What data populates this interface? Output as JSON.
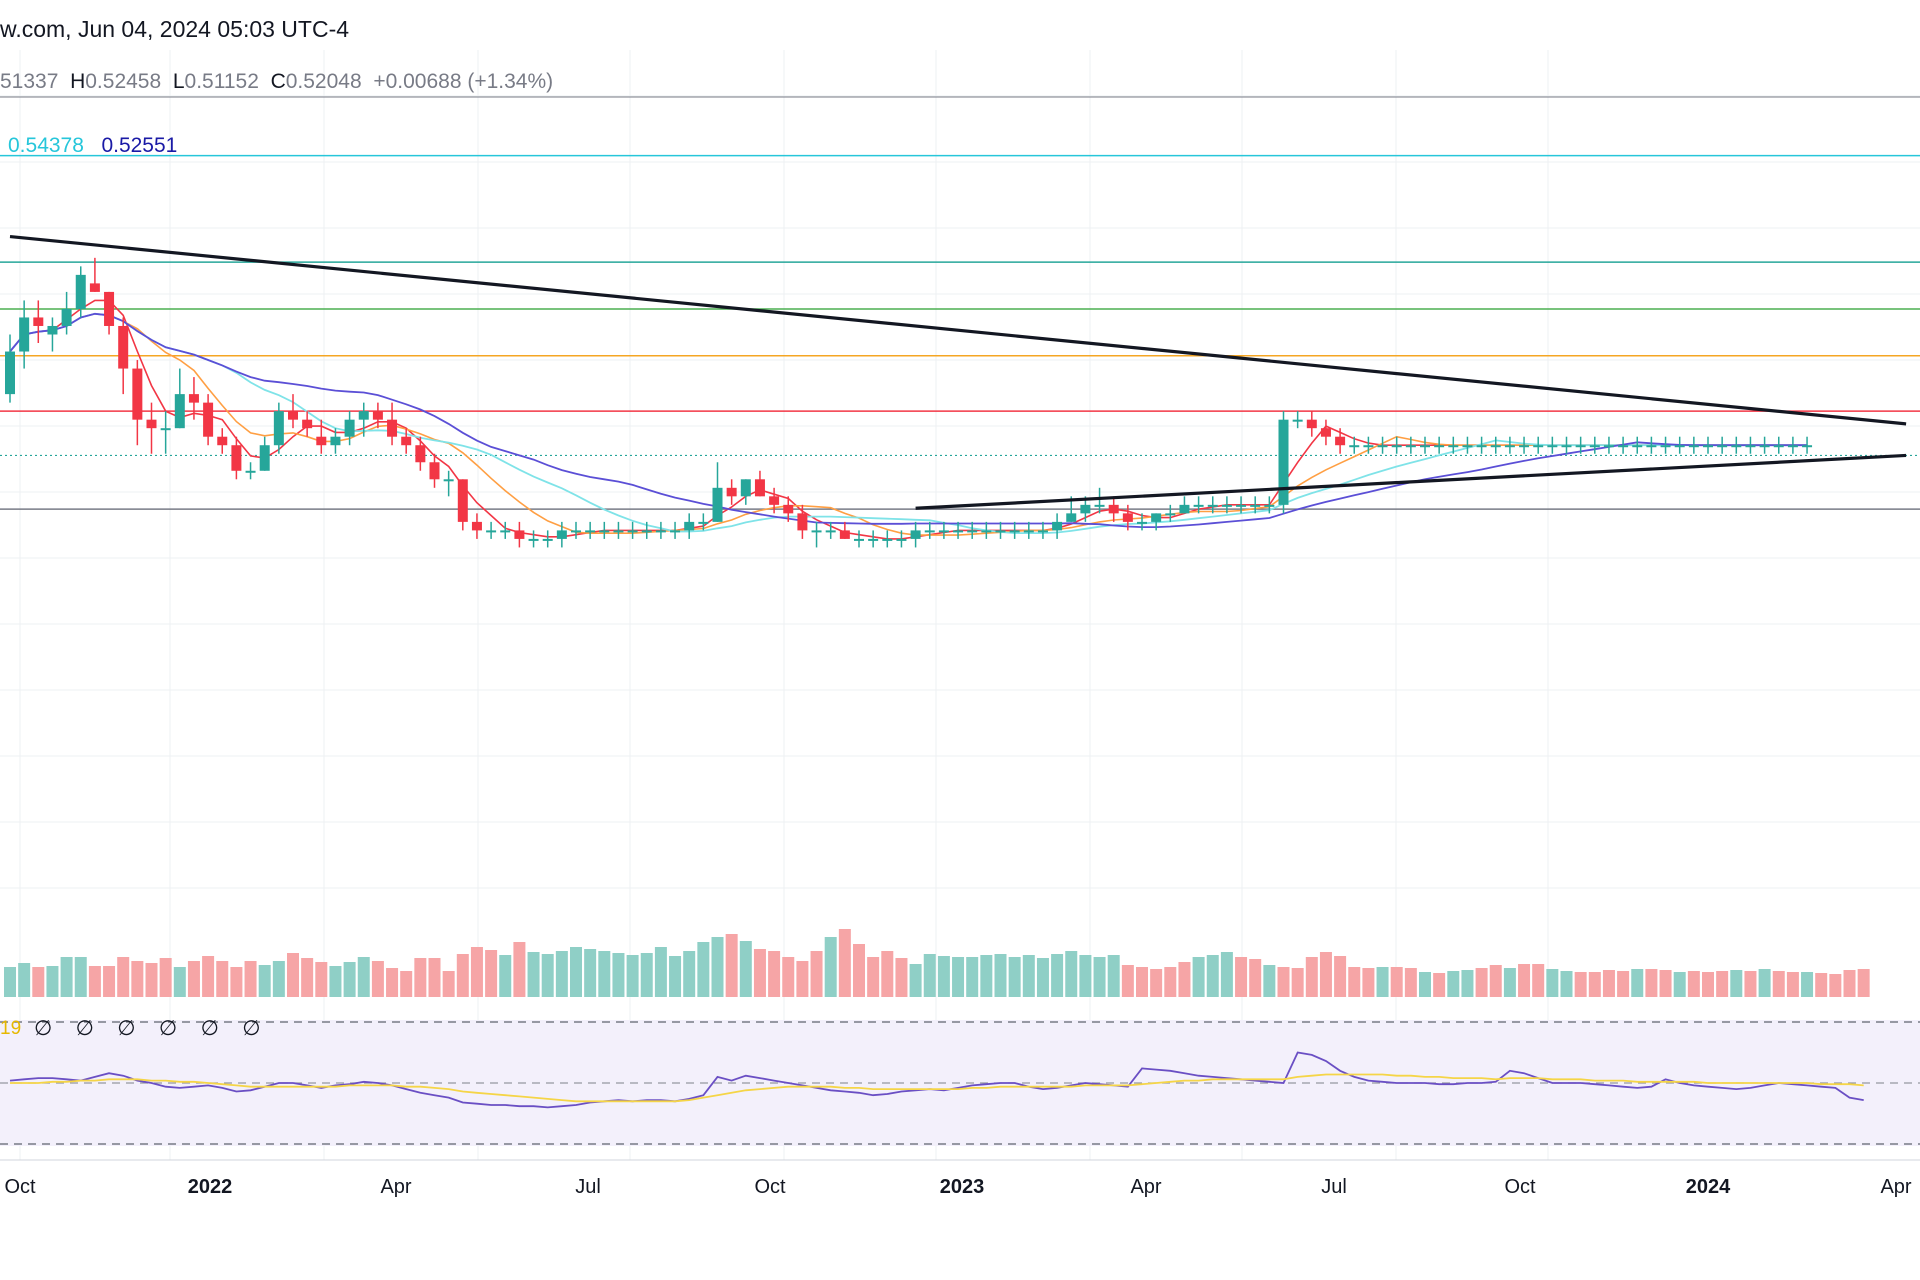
{
  "header": {
    "title": "w.com, Jun 04, 2024 05:03 UTC-4",
    "ohlc": {
      "open_label": "",
      "open_value": "51337",
      "high_label": "H",
      "high_value": "0.52458",
      "low_label": "L",
      "low_value": "0.51152",
      "close_label": "C",
      "close_value": "0.52048",
      "change": "+0.00688 (+1.34%)"
    },
    "ma_values": [
      {
        "value": "0.54378",
        "color": "#26c6da"
      },
      {
        "value": "0.52551",
        "color": "#1a1aa6"
      }
    ]
  },
  "rsi": {
    "label": "19",
    "na_symbols": [
      "∅",
      "∅",
      "∅",
      "∅",
      "∅",
      "∅"
    ]
  },
  "chart_data": {
    "type": "candlestick",
    "title": "w.com, Jun 04, 2024 05:03 UTC-4",
    "xlabel": "",
    "ylabel": "",
    "x_tick_labels": [
      {
        "label": "Oct",
        "week": 1
      },
      {
        "label": "2022",
        "week": 14
      },
      {
        "label": "Apr",
        "week": 27
      },
      {
        "label": "Jul",
        "week": 40
      },
      {
        "label": "Oct",
        "week": 53
      },
      {
        "label": "2023",
        "week": 66
      },
      {
        "label": "Apr",
        "week": 79
      },
      {
        "label": "Jul",
        "week": 92
      },
      {
        "label": "Oct",
        "week": 105
      },
      {
        "label": "2024",
        "week": 118
      },
      {
        "label": "Apr",
        "week": 131
      }
    ],
    "ylim": [
      0.3,
      1.15
    ],
    "horizontal_levels": [
      {
        "value": 1.08,
        "color": "#26c6da"
      },
      {
        "value": 0.955,
        "color": "#26a69a"
      },
      {
        "value": 0.9,
        "color": "#4caf50"
      },
      {
        "value": 0.845,
        "color": "#f5a623"
      },
      {
        "value": 0.78,
        "color": "#f23645"
      },
      {
        "value": 0.665,
        "color": "#787b86"
      }
    ],
    "dotted_level": 0.728,
    "trendlines": [
      {
        "from": {
          "week": 0,
          "value": 0.985
        },
        "to": {
          "week": 134,
          "value": 0.765
        }
      },
      {
        "from": {
          "week": 64,
          "value": 0.666
        },
        "to": {
          "week": 134,
          "value": 0.728
        }
      }
    ],
    "candles": [
      [
        0.8,
        0.87,
        0.79,
        0.85
      ],
      [
        0.85,
        0.91,
        0.83,
        0.89
      ],
      [
        0.89,
        0.91,
        0.86,
        0.88
      ],
      [
        0.87,
        0.89,
        0.85,
        0.88
      ],
      [
        0.88,
        0.92,
        0.87,
        0.9
      ],
      [
        0.9,
        0.95,
        0.89,
        0.94
      ],
      [
        0.93,
        0.96,
        0.92,
        0.92
      ],
      [
        0.92,
        0.92,
        0.87,
        0.88
      ],
      [
        0.88,
        0.89,
        0.8,
        0.83
      ],
      [
        0.83,
        0.84,
        0.74,
        0.77
      ],
      [
        0.77,
        0.79,
        0.73,
        0.76
      ],
      [
        0.76,
        0.78,
        0.73,
        0.76
      ],
      [
        0.76,
        0.83,
        0.76,
        0.8
      ],
      [
        0.8,
        0.82,
        0.77,
        0.79
      ],
      [
        0.79,
        0.8,
        0.74,
        0.75
      ],
      [
        0.75,
        0.76,
        0.73,
        0.74
      ],
      [
        0.74,
        0.75,
        0.7,
        0.71
      ],
      [
        0.71,
        0.72,
        0.7,
        0.71
      ],
      [
        0.71,
        0.75,
        0.71,
        0.74
      ],
      [
        0.74,
        0.79,
        0.73,
        0.78
      ],
      [
        0.78,
        0.8,
        0.76,
        0.77
      ],
      [
        0.77,
        0.78,
        0.75,
        0.76
      ],
      [
        0.75,
        0.77,
        0.73,
        0.74
      ],
      [
        0.74,
        0.76,
        0.73,
        0.75
      ],
      [
        0.75,
        0.78,
        0.74,
        0.77
      ],
      [
        0.77,
        0.79,
        0.75,
        0.78
      ],
      [
        0.78,
        0.79,
        0.76,
        0.77
      ],
      [
        0.77,
        0.79,
        0.74,
        0.75
      ],
      [
        0.75,
        0.76,
        0.73,
        0.74
      ],
      [
        0.74,
        0.75,
        0.71,
        0.72
      ],
      [
        0.72,
        0.73,
        0.69,
        0.7
      ],
      [
        0.7,
        0.71,
        0.68,
        0.7
      ],
      [
        0.7,
        0.7,
        0.64,
        0.65
      ],
      [
        0.65,
        0.66,
        0.63,
        0.64
      ],
      [
        0.64,
        0.65,
        0.63,
        0.64
      ],
      [
        0.64,
        0.65,
        0.63,
        0.64
      ],
      [
        0.64,
        0.65,
        0.62,
        0.63
      ],
      [
        0.63,
        0.64,
        0.62,
        0.63
      ],
      [
        0.63,
        0.64,
        0.62,
        0.63
      ],
      [
        0.63,
        0.65,
        0.62,
        0.64
      ],
      [
        0.64,
        0.65,
        0.63,
        0.64
      ],
      [
        0.64,
        0.65,
        0.63,
        0.64
      ],
      [
        0.64,
        0.65,
        0.63,
        0.64
      ],
      [
        0.64,
        0.65,
        0.63,
        0.64
      ],
      [
        0.64,
        0.65,
        0.63,
        0.64
      ],
      [
        0.64,
        0.65,
        0.63,
        0.64
      ],
      [
        0.64,
        0.65,
        0.63,
        0.64
      ],
      [
        0.64,
        0.65,
        0.63,
        0.64
      ],
      [
        0.64,
        0.66,
        0.63,
        0.65
      ],
      [
        0.65,
        0.66,
        0.64,
        0.65
      ],
      [
        0.65,
        0.72,
        0.65,
        0.69
      ],
      [
        0.69,
        0.7,
        0.67,
        0.68
      ],
      [
        0.68,
        0.7,
        0.67,
        0.7
      ],
      [
        0.7,
        0.71,
        0.68,
        0.68
      ],
      [
        0.68,
        0.69,
        0.66,
        0.67
      ],
      [
        0.67,
        0.68,
        0.65,
        0.66
      ],
      [
        0.66,
        0.67,
        0.63,
        0.64
      ],
      [
        0.64,
        0.65,
        0.62,
        0.64
      ],
      [
        0.64,
        0.65,
        0.63,
        0.64
      ],
      [
        0.64,
        0.65,
        0.63,
        0.63
      ],
      [
        0.63,
        0.64,
        0.62,
        0.63
      ],
      [
        0.63,
        0.64,
        0.62,
        0.63
      ],
      [
        0.63,
        0.64,
        0.62,
        0.63
      ],
      [
        0.63,
        0.64,
        0.62,
        0.63
      ],
      [
        0.63,
        0.65,
        0.62,
        0.64
      ],
      [
        0.64,
        0.65,
        0.63,
        0.64
      ],
      [
        0.64,
        0.65,
        0.63,
        0.64
      ],
      [
        0.64,
        0.65,
        0.63,
        0.64
      ],
      [
        0.64,
        0.65,
        0.63,
        0.64
      ],
      [
        0.64,
        0.65,
        0.63,
        0.64
      ],
      [
        0.64,
        0.65,
        0.63,
        0.64
      ],
      [
        0.64,
        0.65,
        0.63,
        0.64
      ],
      [
        0.64,
        0.65,
        0.63,
        0.64
      ],
      [
        0.64,
        0.65,
        0.63,
        0.64
      ],
      [
        0.64,
        0.66,
        0.63,
        0.65
      ],
      [
        0.65,
        0.68,
        0.65,
        0.66
      ],
      [
        0.66,
        0.68,
        0.65,
        0.67
      ],
      [
        0.67,
        0.69,
        0.66,
        0.67
      ],
      [
        0.67,
        0.68,
        0.65,
        0.66
      ],
      [
        0.66,
        0.67,
        0.64,
        0.65
      ],
      [
        0.65,
        0.66,
        0.64,
        0.65
      ],
      [
        0.65,
        0.66,
        0.64,
        0.66
      ],
      [
        0.66,
        0.67,
        0.65,
        0.66
      ],
      [
        0.66,
        0.68,
        0.66,
        0.67
      ],
      [
        0.67,
        0.68,
        0.66,
        0.67
      ],
      [
        0.67,
        0.68,
        0.66,
        0.67
      ],
      [
        0.67,
        0.68,
        0.66,
        0.67
      ],
      [
        0.67,
        0.68,
        0.66,
        0.67
      ],
      [
        0.67,
        0.68,
        0.66,
        0.67
      ],
      [
        0.67,
        0.68,
        0.66,
        0.67
      ],
      [
        0.67,
        0.78,
        0.66,
        0.77
      ],
      [
        0.77,
        0.78,
        0.76,
        0.77
      ],
      [
        0.77,
        0.78,
        0.75,
        0.76
      ],
      [
        0.76,
        0.77,
        0.74,
        0.75
      ],
      [
        0.75,
        0.76,
        0.73,
        0.74
      ],
      [
        0.74,
        0.75,
        0.73,
        0.74
      ],
      [
        0.74,
        0.75,
        0.73,
        0.74
      ],
      [
        0.74,
        0.75,
        0.73,
        0.74
      ],
      [
        0.74,
        0.75,
        0.73,
        0.74
      ],
      [
        0.74,
        0.75,
        0.73,
        0.74
      ],
      [
        0.74,
        0.75,
        0.73,
        0.74
      ],
      [
        0.74,
        0.75,
        0.73,
        0.74
      ],
      [
        0.74,
        0.75,
        0.73,
        0.74
      ],
      [
        0.74,
        0.75,
        0.73,
        0.74
      ],
      [
        0.74,
        0.75,
        0.73,
        0.74
      ],
      [
        0.74,
        0.75,
        0.73,
        0.74
      ],
      [
        0.74,
        0.75,
        0.73,
        0.74
      ],
      [
        0.74,
        0.75,
        0.73,
        0.74
      ],
      [
        0.74,
        0.75,
        0.73,
        0.74
      ],
      [
        0.74,
        0.75,
        0.73,
        0.74
      ],
      [
        0.74,
        0.75,
        0.73,
        0.74
      ],
      [
        0.74,
        0.75,
        0.73,
        0.74
      ],
      [
        0.74,
        0.75,
        0.73,
        0.74
      ],
      [
        0.74,
        0.75,
        0.73,
        0.74
      ],
      [
        0.74,
        0.75,
        0.73,
        0.74
      ],
      [
        0.74,
        0.75,
        0.73,
        0.74
      ],
      [
        0.74,
        0.75,
        0.73,
        0.74
      ],
      [
        0.74,
        0.75,
        0.73,
        0.74
      ],
      [
        0.74,
        0.75,
        0.73,
        0.74
      ],
      [
        0.74,
        0.75,
        0.73,
        0.74
      ],
      [
        0.74,
        0.75,
        0.73,
        0.74
      ],
      [
        0.74,
        0.75,
        0.73,
        0.74
      ],
      [
        0.74,
        0.75,
        0.73,
        0.74
      ],
      [
        0.74,
        0.75,
        0.73,
        0.74
      ],
      [
        0.74,
        0.75,
        0.73,
        0.74
      ],
      [
        0.74,
        0.75,
        0.73,
        0.74
      ],
      [
        0.74,
        0.75,
        0.73,
        0.74
      ],
      [
        0.74,
        0.75,
        0.73,
        0.74
      ]
    ],
    "volume": [
      30,
      34,
      30,
      31,
      40,
      40,
      31,
      31,
      40,
      36,
      34,
      39,
      30,
      36,
      41,
      36,
      30,
      36,
      32,
      36,
      44,
      39,
      35,
      31,
      35,
      40,
      36,
      29,
      26,
      39,
      39,
      26,
      43,
      50,
      47,
      42,
      55,
      45,
      43,
      46,
      50,
      48,
      46,
      44,
      42,
      44,
      50,
      41,
      46,
      55,
      60,
      63,
      56,
      48,
      46,
      40,
      36,
      46,
      60,
      68,
      53,
      40,
      46,
      39,
      33,
      43,
      41,
      40,
      40,
      42,
      43,
      40,
      42,
      39,
      43,
      46,
      42,
      40,
      42,
      32,
      30,
      28,
      30,
      35,
      40,
      42,
      45,
      40,
      38,
      32,
      30,
      29,
      40,
      45,
      41,
      30,
      29,
      30,
      30,
      29,
      25,
      24,
      26,
      27,
      29,
      32,
      29,
      33,
      33,
      28,
      26,
      25,
      25,
      27,
      26,
      28,
      28,
      27,
      25,
      26,
      25,
      26,
      27,
      26,
      28,
      26,
      25,
      25,
      24,
      23,
      27,
      28
    ],
    "volume_up": [
      true,
      true,
      false,
      true,
      true,
      true,
      false,
      false,
      false,
      false,
      false,
      false,
      true,
      false,
      false,
      false,
      false,
      false,
      true,
      true,
      false,
      false,
      false,
      true,
      true,
      true,
      false,
      false,
      false,
      false,
      false,
      false,
      false,
      false,
      false,
      true,
      false,
      true,
      true,
      true,
      true,
      true,
      true,
      true,
      true,
      true,
      true,
      true,
      true,
      true,
      true,
      false,
      true,
      false,
      false,
      false,
      false,
      false,
      true,
      false,
      false,
      false,
      false,
      false,
      true,
      true,
      true,
      true,
      true,
      true,
      true,
      true,
      true,
      true,
      true,
      true,
      true,
      true,
      true,
      false,
      false,
      false,
      false,
      false,
      true,
      true,
      true,
      false,
      false,
      true,
      false,
      false,
      false,
      false,
      false,
      false,
      false,
      true,
      false,
      false,
      true,
      false,
      true,
      true,
      false,
      false,
      true,
      false,
      false,
      true,
      true,
      false,
      false,
      false,
      false,
      true,
      false,
      false,
      true,
      false,
      false,
      false,
      true,
      false,
      true,
      false,
      false,
      true,
      false,
      false,
      false,
      false
    ],
    "rsi": [
      52,
      53,
      54,
      54,
      53,
      52,
      55,
      58,
      56,
      52,
      50,
      47,
      46,
      47,
      48,
      46,
      43,
      44,
      47,
      50,
      50,
      48,
      46,
      48,
      49,
      51,
      50,
      48,
      45,
      42,
      40,
      38,
      34,
      33,
      32,
      32,
      31,
      31,
      30,
      31,
      32,
      34,
      35,
      36,
      35,
      36,
      36,
      35,
      37,
      40,
      55,
      52,
      56,
      54,
      52,
      50,
      48,
      46,
      44,
      43,
      42,
      40,
      41,
      43,
      44,
      45,
      44,
      46,
      48,
      49,
      50,
      50,
      47,
      45,
      46,
      48,
      50,
      49,
      48,
      47,
      62,
      61,
      60,
      58,
      56,
      55,
      54,
      53,
      52,
      51,
      50,
      75,
      73,
      68,
      60,
      55,
      52,
      51,
      50,
      50,
      50,
      49,
      49,
      50,
      50,
      51,
      60,
      58,
      54,
      50,
      50,
      50,
      49,
      48,
      47,
      46,
      47,
      53,
      50,
      48,
      47,
      46,
      45,
      46,
      48,
      50,
      49,
      48,
      47,
      46,
      38,
      36
    ],
    "rsi_ma": [
      50,
      50,
      50,
      51,
      51,
      52,
      52,
      53,
      53,
      53,
      52,
      52,
      51,
      51,
      50,
      49,
      48,
      47,
      47,
      47,
      47,
      47,
      47,
      47,
      48,
      48,
      48,
      48,
      47,
      47,
      46,
      45,
      43,
      42,
      41,
      40,
      39,
      38,
      37,
      36,
      35,
      35,
      35,
      35,
      35,
      35,
      35,
      35,
      36,
      38,
      40,
      42,
      44,
      45,
      46,
      47,
      47,
      47,
      47,
      46,
      46,
      45,
      45,
      45,
      45,
      45,
      45,
      45,
      46,
      46,
      47,
      47,
      47,
      47,
      47,
      47,
      48,
      48,
      48,
      48,
      49,
      50,
      51,
      52,
      52,
      53,
      53,
      53,
      53,
      53,
      53,
      55,
      56,
      57,
      57,
      57,
      57,
      57,
      56,
      56,
      55,
      55,
      54,
      54,
      54,
      53,
      54,
      54,
      54,
      53,
      53,
      53,
      52,
      52,
      52,
      51,
      51,
      51,
      51,
      51,
      50,
      50,
      50,
      50,
      50,
      50,
      50,
      50,
      49,
      49,
      49,
      48
    ]
  }
}
